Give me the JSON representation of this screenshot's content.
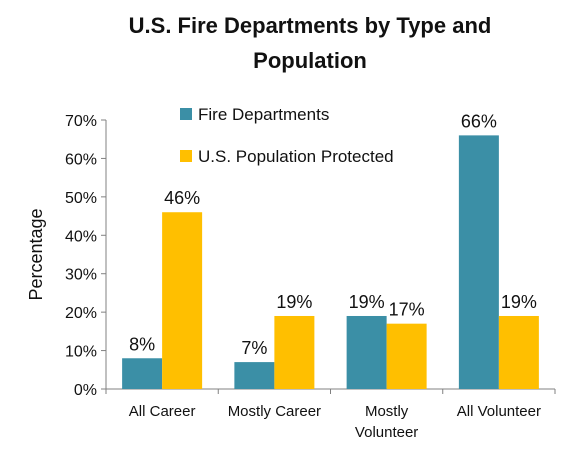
{
  "chart_data": {
    "type": "bar",
    "title_lines": [
      "U.S. Fire Departments by Type and",
      "Population"
    ],
    "xlabel": "",
    "ylabel": "Percentage",
    "ylim": [
      0,
      70
    ],
    "yticks": [
      0,
      10,
      20,
      30,
      40,
      50,
      60,
      70
    ],
    "ytick_labels": [
      "0%",
      "10%",
      "20%",
      "30%",
      "40%",
      "50%",
      "60%",
      "70%"
    ],
    "grid": false,
    "legend_position": "top-left inside plot",
    "categories": [
      [
        "All Career"
      ],
      [
        "Mostly Career"
      ],
      [
        "Mostly",
        "Volunteer"
      ],
      [
        "All Volunteer"
      ]
    ],
    "series": [
      {
        "name": "Fire Departments",
        "color": "#3b8fa6",
        "values": [
          8,
          7,
          19,
          66
        ],
        "labels": [
          "8%",
          "7%",
          "19%",
          "66%"
        ]
      },
      {
        "name": "U.S. Population Protected",
        "color": "#ffbf00",
        "values": [
          46,
          19,
          17,
          19
        ],
        "labels": [
          "46%",
          "19%",
          "17%",
          "19%"
        ]
      }
    ]
  }
}
